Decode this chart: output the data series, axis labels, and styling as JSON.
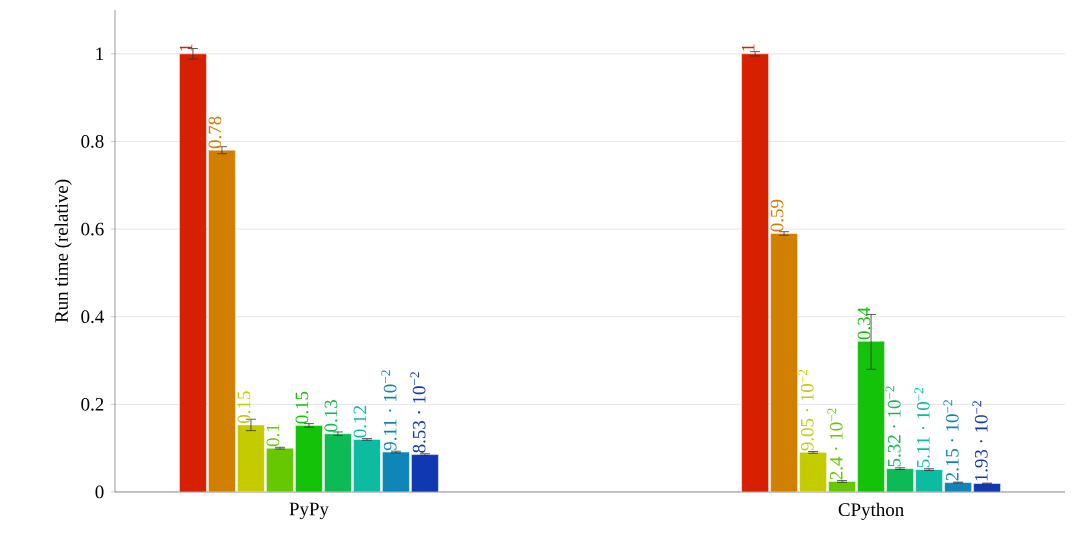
{
  "chart_data": {
    "type": "bar",
    "ylabel": "Run time (relative)",
    "categories": [
      "PyPy",
      "CPython"
    ],
    "series": [
      {
        "color": "#d62000",
        "values": [
          1,
          1
        ],
        "errors": [
          0.012,
          0.005
        ],
        "value_labels": [
          "1",
          "1"
        ]
      },
      {
        "color": "#d17f00",
        "values": [
          0.78,
          0.59
        ],
        "errors": [
          0.008,
          0.004
        ],
        "value_labels": [
          "0.78",
          "0.59"
        ]
      },
      {
        "color": "#c4cc00",
        "values": [
          0.153,
          0.0905
        ],
        "errors": [
          0.013,
          0.002
        ],
        "value_labels": [
          "0.15",
          "9.05 · 10$^{−2}$"
        ]
      },
      {
        "color": "#66c800",
        "values": [
          0.1,
          0.024
        ],
        "errors": [
          0.002,
          0.002
        ],
        "value_labels": [
          "0.1",
          "2.4 · 10$^{−2}$"
        ]
      },
      {
        "color": "#14c20a",
        "values": [
          0.152,
          0.344
        ],
        "errors": [
          0.004,
          [
            0.28,
            0.405
          ]
        ],
        "value_labels": [
          "0.15",
          "0.34"
        ]
      },
      {
        "color": "#0cbb55",
        "values": [
          0.133,
          0.0532
        ],
        "errors": [
          0.004,
          0.002
        ],
        "value_labels": [
          "0.13",
          "5.32 · 10$^{−2}$"
        ]
      },
      {
        "color": "#0cbba0",
        "values": [
          0.12,
          0.0511
        ],
        "errors": [
          0.002,
          0.002
        ],
        "value_labels": [
          "0.12",
          "5.11 · 10$^{−2}$"
        ]
      },
      {
        "color": "#0e86b8",
        "values": [
          0.0911,
          0.0215
        ],
        "errors": [
          0.002,
          0.001
        ],
        "value_labels": [
          "9.11 · 10$^{−2}$",
          "2.15 · 10$^{−2}$"
        ]
      },
      {
        "color": "#1038b0",
        "values": [
          0.0853,
          0.0193
        ],
        "errors": [
          0.002,
          0.001
        ],
        "value_labels": [
          "8.53 · 10$^{−2}$",
          "1.93 · 10$^{−2}$"
        ]
      }
    ],
    "ylim": [
      0,
      1.1
    ],
    "yticks": [
      0,
      0.2,
      0.4,
      0.6,
      0.8,
      1
    ],
    "grid": "y"
  }
}
